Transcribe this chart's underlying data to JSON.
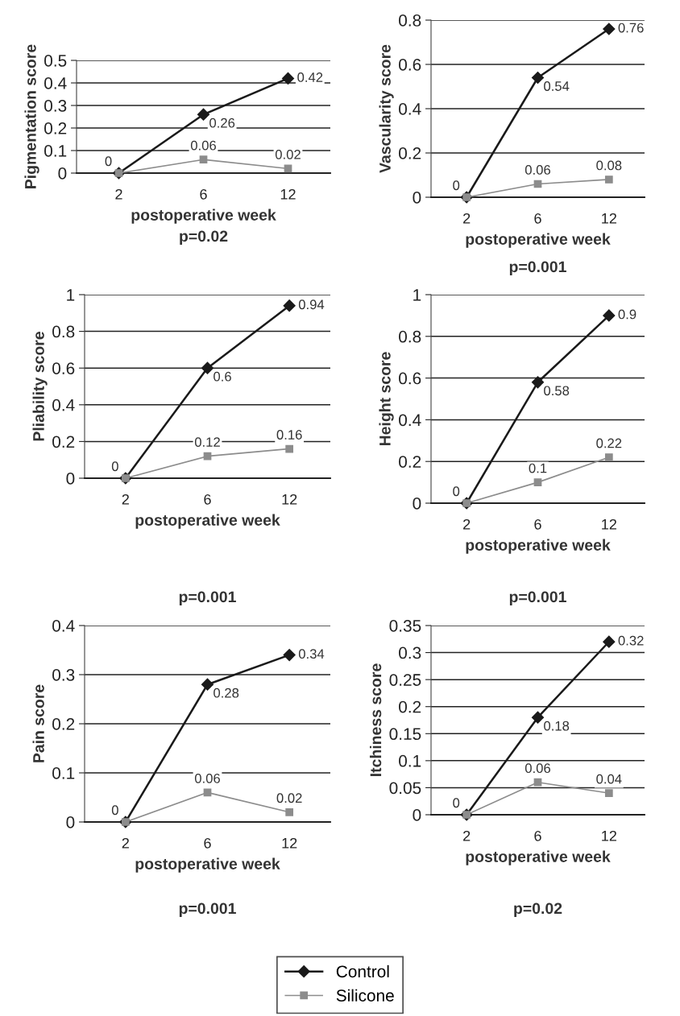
{
  "chart_data": [
    {
      "type": "line",
      "ylabel": "Pigmentation score",
      "xlabel": "postoperative week",
      "categories": [
        "2",
        "6",
        "12"
      ],
      "ylim": [
        0,
        0.5
      ],
      "yticks": [
        0,
        0.1,
        0.2,
        0.3,
        0.4,
        0.5
      ],
      "grid": "y",
      "annotations": [
        "p=0.02"
      ],
      "legend": "bottom",
      "series": [
        {
          "name": "Control",
          "color": "#1a1a1a",
          "marker": "diamond",
          "values": [
            0,
            0.26,
            0.42
          ],
          "value_labels": [
            null,
            "0.26",
            "0.42"
          ]
        },
        {
          "name": "Silicone",
          "color": "#8c8c8c",
          "marker": "square",
          "values": [
            0,
            0.06,
            0.02
          ],
          "value_labels": [
            "0",
            "0.06",
            "0.02"
          ]
        }
      ]
    },
    {
      "type": "line",
      "ylabel": "Vascularity score",
      "xlabel": "postoperative week",
      "categories": [
        "2",
        "6",
        "12"
      ],
      "ylim": [
        0,
        0.8
      ],
      "yticks": [
        0,
        0.2,
        0.4,
        0.6,
        0.8
      ],
      "grid": "y",
      "annotations": [
        "p=0.001"
      ],
      "series": [
        {
          "color": "#1a1a1a",
          "marker": "diamond",
          "values": [
            0,
            0.54,
            0.76
          ],
          "value_labels": [
            null,
            "0.54",
            "0.76"
          ]
        },
        {
          "color": "#8c8c8c",
          "marker": "square",
          "values": [
            0,
            0.06,
            0.08
          ],
          "value_labels": [
            "0",
            "0.06",
            "0.08"
          ]
        }
      ]
    },
    {
      "type": "line",
      "ylabel": "Pliability score",
      "xlabel": "postoperative week",
      "categories": [
        "2",
        "6",
        "12"
      ],
      "ylim": [
        0,
        1
      ],
      "yticks": [
        0,
        0.2,
        0.4,
        0.6,
        0.8,
        1
      ],
      "grid": "y",
      "annotations": [
        "p=0.001"
      ],
      "series": [
        {
          "color": "#1a1a1a",
          "marker": "diamond",
          "values": [
            0,
            0.6,
            0.94
          ],
          "value_labels": [
            null,
            "0.6",
            "0.94"
          ]
        },
        {
          "color": "#8c8c8c",
          "marker": "square",
          "values": [
            0,
            0.12,
            0.16
          ],
          "value_labels": [
            "0",
            "0.12",
            "0.16"
          ]
        }
      ]
    },
    {
      "type": "line",
      "ylabel": "Height score",
      "xlabel": "postoperative week",
      "categories": [
        "2",
        "6",
        "12"
      ],
      "ylim": [
        0,
        1
      ],
      "yticks": [
        0,
        0.2,
        0.4,
        0.6,
        0.8,
        1
      ],
      "grid": "y",
      "annotations": [
        "p=0.001"
      ],
      "series": [
        {
          "color": "#1a1a1a",
          "marker": "diamond",
          "values": [
            0,
            0.58,
            0.9
          ],
          "value_labels": [
            null,
            "0.58",
            "0.9"
          ]
        },
        {
          "color": "#8c8c8c",
          "marker": "square",
          "values": [
            0,
            0.1,
            0.22
          ],
          "value_labels": [
            "0",
            "0.1",
            "0.22"
          ]
        }
      ]
    },
    {
      "type": "line",
      "ylabel": "Pain score",
      "xlabel": "postoperative week",
      "categories": [
        "2",
        "6",
        "12"
      ],
      "ylim": [
        0,
        0.4
      ],
      "yticks": [
        0,
        0.1,
        0.2,
        0.3,
        0.4
      ],
      "grid": "y",
      "annotations": [
        "p=0.001"
      ],
      "series": [
        {
          "color": "#1a1a1a",
          "marker": "diamond",
          "values": [
            0,
            0.28,
            0.34
          ],
          "value_labels": [
            null,
            "0.28",
            "0.34"
          ]
        },
        {
          "color": "#8c8c8c",
          "marker": "square",
          "values": [
            0,
            0.06,
            0.02
          ],
          "value_labels": [
            "0",
            "0.06",
            "0.02"
          ]
        }
      ]
    },
    {
      "type": "line",
      "ylabel": "Itchiness score",
      "xlabel": "postoperative week",
      "categories": [
        "2",
        "6",
        "12"
      ],
      "ylim": [
        0,
        0.35
      ],
      "yticks": [
        0,
        0.05,
        0.1,
        0.15,
        0.2,
        0.25,
        0.3,
        0.35
      ],
      "grid": "y",
      "annotations": [
        "p=0.02"
      ],
      "series": [
        {
          "color": "#1a1a1a",
          "marker": "diamond",
          "values": [
            0,
            0.18,
            0.32
          ],
          "value_labels": [
            null,
            "0.18",
            "0.32"
          ]
        },
        {
          "color": "#8c8c8c",
          "marker": "square",
          "values": [
            0,
            0.06,
            0.04
          ],
          "value_labels": [
            "0",
            "0.06",
            "0.04"
          ]
        }
      ]
    }
  ]
}
